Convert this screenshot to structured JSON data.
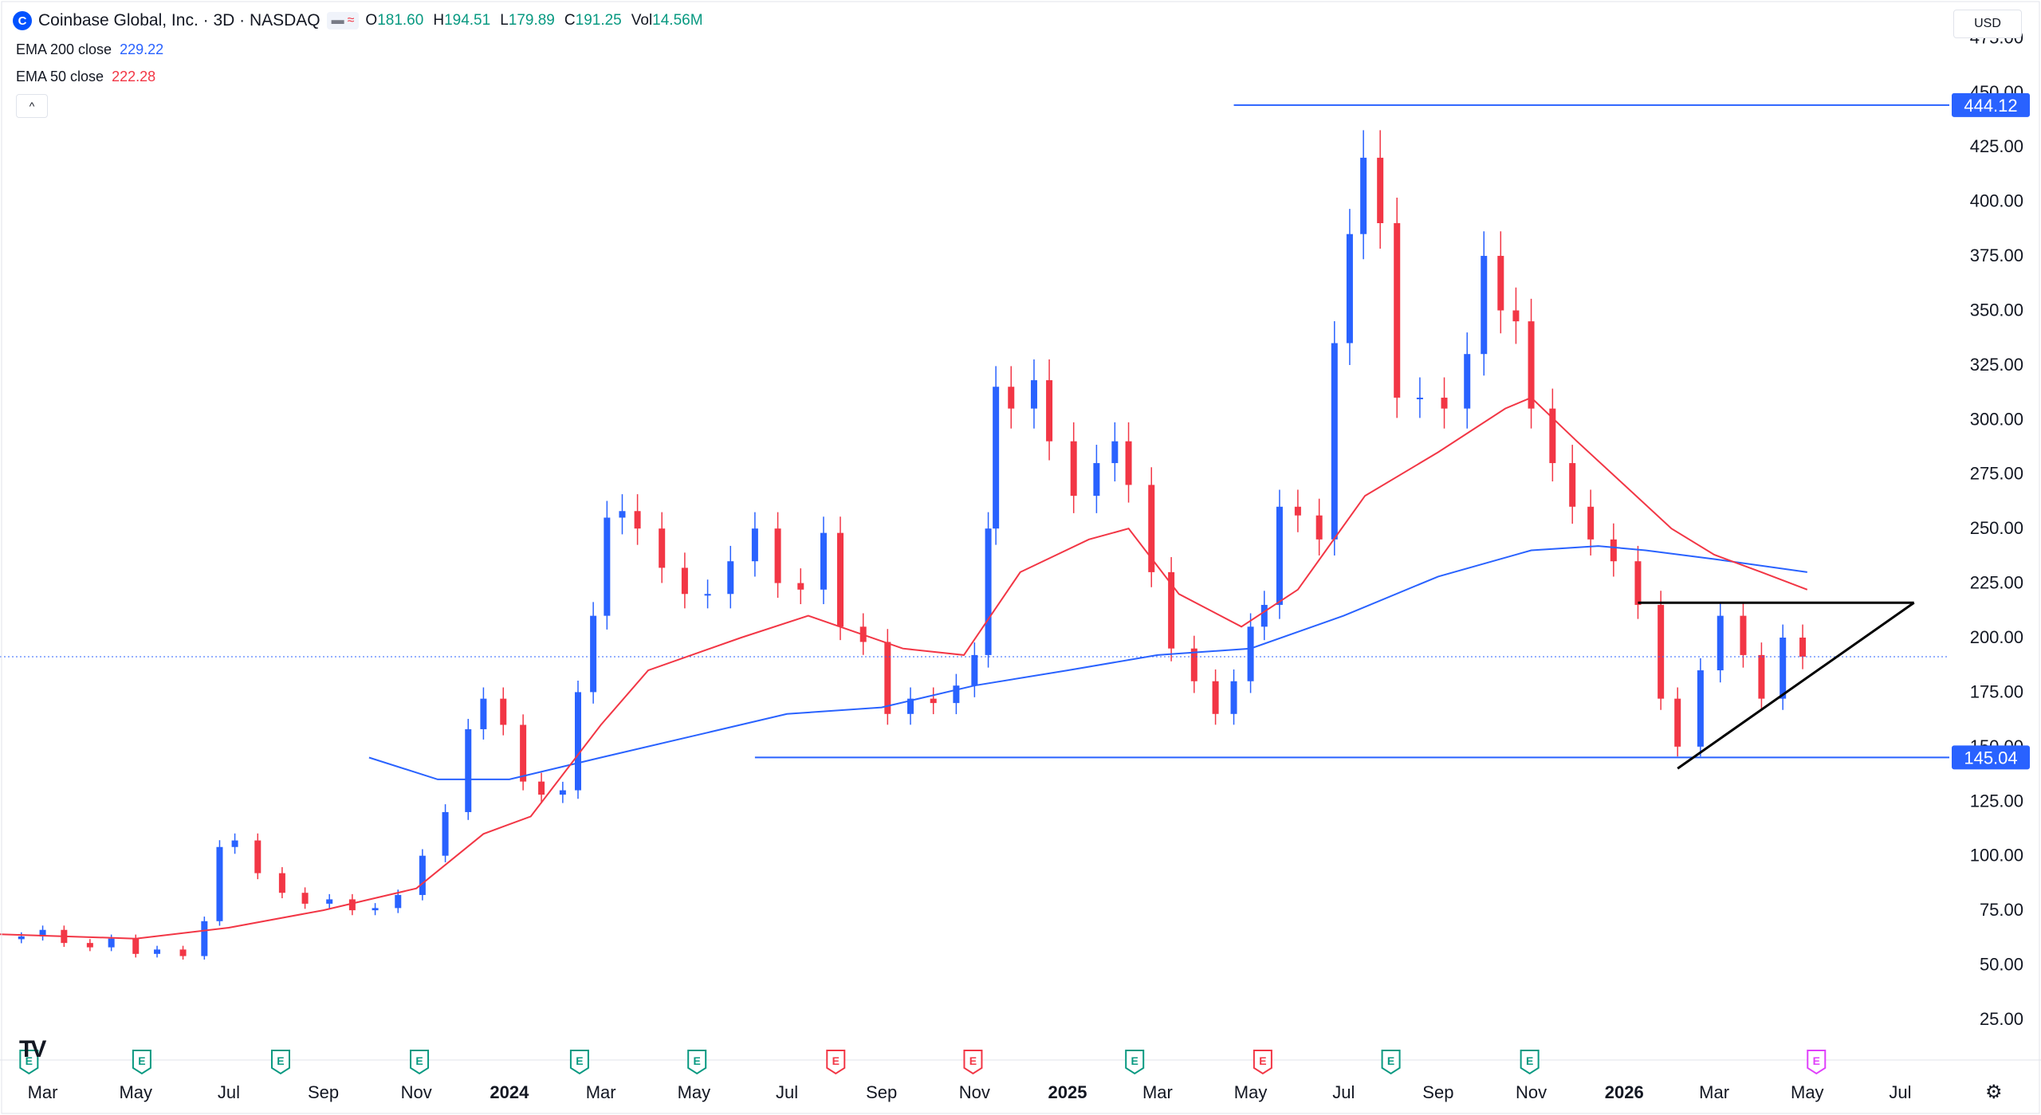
{
  "header": {
    "symbol_title": "Coinbase Global, Inc. · 3D · NASDAQ",
    "logo_letter": "C",
    "flags": [
      "▬",
      "≈"
    ],
    "ohlc": [
      {
        "key": "O",
        "value": "181.60"
      },
      {
        "key": "H",
        "value": "194.51"
      },
      {
        "key": "L",
        "value": "179.89"
      },
      {
        "key": "C",
        "value": "191.25"
      },
      {
        "key": "Vol",
        "value": "14.56M"
      }
    ]
  },
  "indicators": {
    "ema200": {
      "label": "EMA 200 close",
      "value": "229.22",
      "color": "#2962ff"
    },
    "ema50": {
      "label": "EMA 50 close",
      "value": "222.28",
      "color": "#f23645"
    }
  },
  "collapse_icon": "^",
  "currency": "USD",
  "tv_logo": "TV",
  "settings_icon": "⚙",
  "chart_data": {
    "type": "candlestick",
    "title": "Coinbase Global, Inc. · 3D · NASDAQ",
    "ylim": [
      10,
      485
    ],
    "y_ticks": [
      "25.00",
      "50.00",
      "75.00",
      "100.00",
      "125.00",
      "150.00",
      "175.00",
      "200.00",
      "225.00",
      "250.00",
      "275.00",
      "300.00",
      "325.00",
      "350.00",
      "375.00",
      "400.00",
      "425.00",
      "450.00",
      "475.00"
    ],
    "x_labels": [
      {
        "label": "Mar",
        "date": "2023-03"
      },
      {
        "label": "May",
        "date": "2023-05"
      },
      {
        "label": "Jul",
        "date": "2023-07"
      },
      {
        "label": "Sep",
        "date": "2023-09"
      },
      {
        "label": "Nov",
        "date": "2023-11"
      },
      {
        "label": "2024",
        "date": "2024-01",
        "bold": true
      },
      {
        "label": "Mar",
        "date": "2024-03"
      },
      {
        "label": "May",
        "date": "2024-05"
      },
      {
        "label": "Jul",
        "date": "2024-07"
      },
      {
        "label": "Sep",
        "date": "2024-09"
      },
      {
        "label": "Nov",
        "date": "2024-11"
      },
      {
        "label": "2025",
        "date": "2025-01",
        "bold": true
      },
      {
        "label": "Mar",
        "date": "2025-03"
      },
      {
        "label": "May",
        "date": "2025-05"
      },
      {
        "label": "Jul",
        "date": "2025-07"
      },
      {
        "label": "Sep",
        "date": "2025-09"
      },
      {
        "label": "Nov",
        "date": "2025-11"
      },
      {
        "label": "2026",
        "date": "2026-01",
        "bold": true
      },
      {
        "label": "Mar",
        "date": "2026-03"
      },
      {
        "label": "May",
        "date": "2026-05"
      },
      {
        "label": "Jul",
        "date": "2026-07"
      }
    ],
    "events": [
      {
        "date": "2023-02-20",
        "type": "E",
        "color": "#089981"
      },
      {
        "date": "2023-05-05",
        "type": "E",
        "color": "#089981"
      },
      {
        "date": "2023-08-04",
        "type": "E",
        "color": "#089981"
      },
      {
        "date": "2023-11-03",
        "type": "E",
        "color": "#089981"
      },
      {
        "date": "2024-02-16",
        "type": "E",
        "color": "#089981"
      },
      {
        "date": "2024-05-03",
        "type": "E",
        "color": "#089981"
      },
      {
        "date": "2024-08-02",
        "type": "E",
        "color": "#f23645"
      },
      {
        "date": "2024-10-31",
        "type": "E",
        "color": "#f23645"
      },
      {
        "date": "2025-02-14",
        "type": "E",
        "color": "#089981"
      },
      {
        "date": "2025-05-09",
        "type": "E",
        "color": "#f23645"
      },
      {
        "date": "2025-08-01",
        "type": "E",
        "color": "#089981"
      },
      {
        "date": "2025-10-31",
        "type": "E",
        "color": "#089981"
      },
      {
        "date": "2026-05-07",
        "type": "E",
        "color": "#e040fb"
      }
    ],
    "price_labels": [
      {
        "value": 444.12,
        "text": "444.12",
        "color": "#2962ff"
      },
      {
        "value": 145.04,
        "text": "145.04",
        "color": "#2962ff"
      }
    ],
    "last_price": 191.25,
    "horizontal_lines": [
      {
        "value": 444.12,
        "from": "2025-04-20",
        "color": "#2962ff"
      },
      {
        "value": 145.04,
        "from": "2024-06-10",
        "color": "#2962ff"
      }
    ],
    "trendlines": [
      {
        "from": {
          "date": "2026-01-10",
          "value": 216
        },
        "to": {
          "date": "2026-07-10",
          "value": 216
        },
        "color": "#000000"
      },
      {
        "from": {
          "date": "2026-02-05",
          "value": 140
        },
        "to": {
          "date": "2026-07-10",
          "value": 216
        },
        "color": "#000000"
      }
    ],
    "series": [
      {
        "name": "Price (3D closes)",
        "type": "candles",
        "values": [
          [
            "2023-02-15",
            63
          ],
          [
            "2023-03-01",
            66
          ],
          [
            "2023-03-15",
            60
          ],
          [
            "2023-04-01",
            58
          ],
          [
            "2023-04-15",
            62
          ],
          [
            "2023-05-01",
            55
          ],
          [
            "2023-05-15",
            57
          ],
          [
            "2023-06-01",
            54
          ],
          [
            "2023-06-15",
            70
          ],
          [
            "2023-06-25",
            104
          ],
          [
            "2023-07-05",
            107
          ],
          [
            "2023-07-20",
            92
          ],
          [
            "2023-08-05",
            83
          ],
          [
            "2023-08-20",
            78
          ],
          [
            "2023-09-05",
            80
          ],
          [
            "2023-09-20",
            75
          ],
          [
            "2023-10-05",
            76
          ],
          [
            "2023-10-20",
            82
          ],
          [
            "2023-11-05",
            100
          ],
          [
            "2023-11-20",
            120
          ],
          [
            "2023-12-05",
            158
          ],
          [
            "2023-12-15",
            172
          ],
          [
            "2023-12-28",
            160
          ],
          [
            "2024-01-10",
            134
          ],
          [
            "2024-01-22",
            128
          ],
          [
            "2024-02-05",
            130
          ],
          [
            "2024-02-15",
            175
          ],
          [
            "2024-02-25",
            210
          ],
          [
            "2024-03-05",
            255
          ],
          [
            "2024-03-15",
            258
          ],
          [
            "2024-03-25",
            250
          ],
          [
            "2024-04-10",
            232
          ],
          [
            "2024-04-25",
            220
          ],
          [
            "2024-05-10",
            220
          ],
          [
            "2024-05-25",
            235
          ],
          [
            "2024-06-10",
            250
          ],
          [
            "2024-06-25",
            225
          ],
          [
            "2024-07-10",
            222
          ],
          [
            "2024-07-25",
            248
          ],
          [
            "2024-08-05",
            205
          ],
          [
            "2024-08-20",
            198
          ],
          [
            "2024-09-05",
            165
          ],
          [
            "2024-09-20",
            172
          ],
          [
            "2024-10-05",
            170
          ],
          [
            "2024-10-20",
            178
          ],
          [
            "2024-11-01",
            192
          ],
          [
            "2024-11-10",
            250
          ],
          [
            "2024-11-15",
            315
          ],
          [
            "2024-11-25",
            305
          ],
          [
            "2024-12-10",
            318
          ],
          [
            "2024-12-20",
            290
          ],
          [
            "2025-01-05",
            265
          ],
          [
            "2025-01-20",
            280
          ],
          [
            "2025-02-01",
            290
          ],
          [
            "2025-02-10",
            270
          ],
          [
            "2025-02-25",
            230
          ],
          [
            "2025-03-10",
            195
          ],
          [
            "2025-03-25",
            180
          ],
          [
            "2025-04-08",
            165
          ],
          [
            "2025-04-20",
            180
          ],
          [
            "2025-05-01",
            205
          ],
          [
            "2025-05-10",
            215
          ],
          [
            "2025-05-20",
            260
          ],
          [
            "2025-06-01",
            256
          ],
          [
            "2025-06-15",
            245
          ],
          [
            "2025-06-25",
            335
          ],
          [
            "2025-07-05",
            385
          ],
          [
            "2025-07-14",
            420
          ],
          [
            "2025-07-25",
            390
          ],
          [
            "2025-08-05",
            310
          ],
          [
            "2025-08-20",
            310
          ],
          [
            "2025-09-05",
            305
          ],
          [
            "2025-09-20",
            330
          ],
          [
            "2025-10-01",
            375
          ],
          [
            "2025-10-12",
            350
          ],
          [
            "2025-10-22",
            345
          ],
          [
            "2025-11-01",
            305
          ],
          [
            "2025-11-15",
            280
          ],
          [
            "2025-11-28",
            260
          ],
          [
            "2025-12-10",
            245
          ],
          [
            "2025-12-25",
            235
          ],
          [
            "2026-01-10",
            215
          ],
          [
            "2026-01-25",
            172
          ],
          [
            "2026-02-05",
            150
          ],
          [
            "2026-02-20",
            185
          ],
          [
            "2026-03-05",
            210
          ],
          [
            "2026-03-20",
            192
          ],
          [
            "2026-04-01",
            172
          ],
          [
            "2026-04-15",
            200
          ],
          [
            "2026-04-28",
            191.25
          ]
        ]
      },
      {
        "name": "EMA 200 close",
        "values": [
          [
            "2023-10-01",
            145
          ],
          [
            "2023-11-15",
            135
          ],
          [
            "2024-01-01",
            135
          ],
          [
            "2024-03-01",
            145
          ],
          [
            "2024-05-01",
            155
          ],
          [
            "2024-07-01",
            165
          ],
          [
            "2024-09-01",
            168
          ],
          [
            "2024-11-01",
            178
          ],
          [
            "2025-01-01",
            185
          ],
          [
            "2025-03-01",
            192
          ],
          [
            "2025-05-01",
            195
          ],
          [
            "2025-07-01",
            210
          ],
          [
            "2025-09-01",
            228
          ],
          [
            "2025-11-01",
            240
          ],
          [
            "2025-12-15",
            242
          ],
          [
            "2026-01-15",
            240
          ],
          [
            "2026-03-01",
            236
          ],
          [
            "2026-05-01",
            230
          ]
        ]
      },
      {
        "name": "EMA 50 close",
        "values": [
          [
            "2023-02-01",
            64
          ],
          [
            "2023-05-01",
            62
          ],
          [
            "2023-07-01",
            67
          ],
          [
            "2023-09-01",
            75
          ],
          [
            "2023-11-01",
            85
          ],
          [
            "2023-12-15",
            110
          ],
          [
            "2024-01-15",
            118
          ],
          [
            "2024-03-01",
            160
          ],
          [
            "2024-04-01",
            185
          ],
          [
            "2024-06-01",
            200
          ],
          [
            "2024-07-15",
            210
          ],
          [
            "2024-09-15",
            195
          ],
          [
            "2024-10-25",
            192
          ],
          [
            "2024-12-01",
            230
          ],
          [
            "2025-01-15",
            245
          ],
          [
            "2025-02-10",
            250
          ],
          [
            "2025-03-15",
            220
          ],
          [
            "2025-04-25",
            205
          ],
          [
            "2025-06-01",
            222
          ],
          [
            "2025-07-15",
            265
          ],
          [
            "2025-09-01",
            285
          ],
          [
            "2025-10-15",
            305
          ],
          [
            "2025-11-01",
            310
          ],
          [
            "2025-12-01",
            290
          ],
          [
            "2026-01-01",
            270
          ],
          [
            "2026-02-01",
            250
          ],
          [
            "2026-03-01",
            238
          ],
          [
            "2026-04-01",
            230
          ],
          [
            "2026-05-01",
            222
          ]
        ]
      }
    ]
  }
}
